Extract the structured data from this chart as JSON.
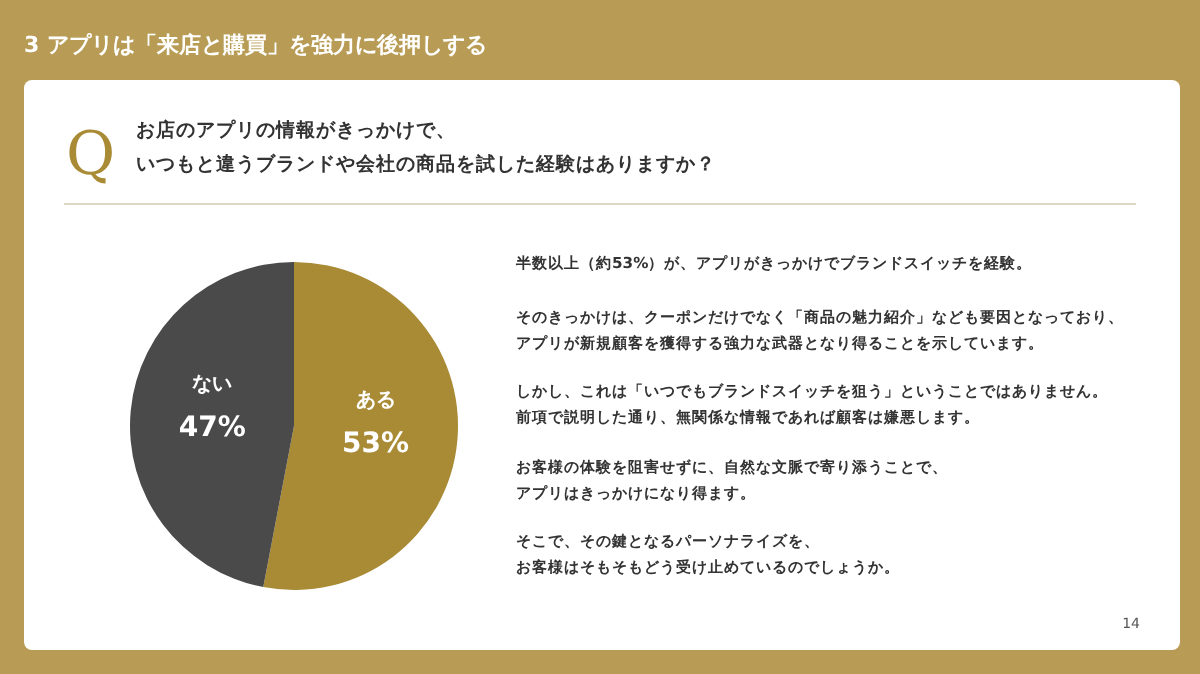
{
  "chart_data": {
    "type": "pie",
    "title": "3 アプリは「来店と購買」を強力に後押しする",
    "subtitle": "お店のアプリの情報がきっかけで、",
    "categories": [
      "ある",
      "ない"
    ],
    "values": [
      53,
      47
    ],
    "colors": [
      "#a98a35",
      "#4a4a4a"
    ],
    "value_labels": [
      "53%",
      "47%"
    ],
    "annotations": [
      "Q",
      "いつもと違うブランドや会社の商品を試した経験はありますか？",
      "半数以上（約53%）が、アプリがきっかけでブランドスイッチを経験。",
      "そのきっかけは、クーポンだけでなく「商品の魅力紹介」なども要因となっており、",
      "アプリが新規顧客を獲得する強力な武器となり得ることを示しています。",
      "しかし、これは「いつでもブランドスイッチを狙う」ということではありません。",
      "前項で説明した通り、無関係な情報であれば顧客は嫌悪します。",
      "お客様の体験を阻害せずに、自然な文脈で寄り添うことで、",
      "アプリはきっかけになり得ます。",
      "そこで、その鍵となるパーソナライズを、",
      "お客様はそもそもどう受け止めているのでしょうか。",
      "14"
    ]
  }
}
